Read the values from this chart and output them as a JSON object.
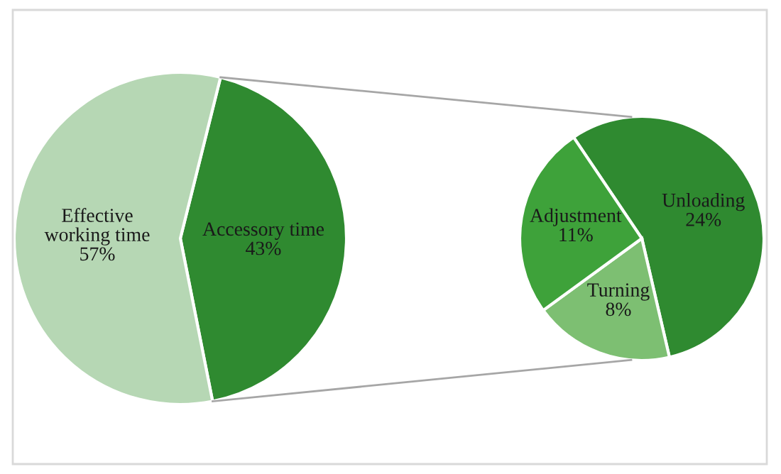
{
  "chart_data": [
    {
      "type": "pie",
      "categories": [
        "Accessory time",
        "Effective\nworking time"
      ],
      "values": [
        43,
        57
      ],
      "value_labels": [
        "43%",
        "57%"
      ],
      "colors": [
        "#2f8a30",
        "#b6d7b4"
      ]
    },
    {
      "type": "pie",
      "categories": [
        "Unloading",
        "Turning",
        "Adjustment"
      ],
      "values": [
        24,
        8,
        11
      ],
      "value_labels": [
        "24%",
        "8%",
        "11%"
      ],
      "colors": [
        "#2f8a30",
        "#7dbf72",
        "#3ea23a"
      ]
    }
  ]
}
